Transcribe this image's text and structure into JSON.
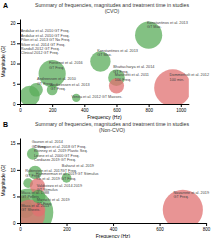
{
  "chart_data": [
    {
      "type": "bubble",
      "title": "Summary of frequencies, magnitudes and treatment time in studies\n(CVO)",
      "panel_label": "A",
      "x_label": "Frequency (Hz)",
      "y_label": "Magnitude (G)",
      "x": [
        60,
        100,
        200,
        200,
        500,
        600,
        600,
        800,
        950,
        350
      ],
      "values": [
        2.0,
        3.5,
        7.5,
        3.5,
        10.5,
        6.5,
        4.5,
        17.0,
        4.0,
        1.5
      ],
      "sizes": [
        900,
        400,
        1600,
        250,
        900,
        600,
        500,
        1600,
        3000,
        150
      ],
      "colors": [
        "#5aac5a",
        "#5aac5a",
        "#5aac5a",
        "#5aac5a",
        "#5aac5a",
        "#5aac5a",
        "#e07070",
        "#5aac5a",
        "#e07070",
        "#5aac5a"
      ],
      "annotations": [
        {
          "x": 5,
          "y": 12.0,
          "text": "Andaluz et al. 2010 GT Freq.\nAndaluz et al. 2010 GT Freq.\nPilon et al. 2013 GT No Freq.\nSilver et al. 2014 GT Freq.\nRandall-2012 GT Freq.\nClinical 2012 GT Freq."
        },
        {
          "x": 105,
          "y": 4.5,
          "text": "Andreessen et al. 2010\nGT Freq."
        },
        {
          "x": 180,
          "y": 8.5,
          "text": "Fontenot et al. 2016\nGT Freq."
        },
        {
          "x": 190,
          "y": 3.2,
          "text": "Andreessen et al. 2013\nGT Freq."
        },
        {
          "x": 480,
          "y": 11.5,
          "text": "Konstantinos et al. 2013\nGT Max."
        },
        {
          "x": 580,
          "y": 7.5,
          "text": "Bhattacharya et al. 2014\nGT Freq."
        },
        {
          "x": 590,
          "y": 5.5,
          "text": "Marchetti et al. 2011\n100 Freq."
        },
        {
          "x": 790,
          "y": 18.5,
          "text": "Konstantinos et al. 2013\nGT Max."
        },
        {
          "x": 930,
          "y": 5.5,
          "text": "Dommerholt et al. 2012\n100 min."
        },
        {
          "x": 320,
          "y": 1.2,
          "text": "Venita et al. 2012 GT Masses."
        }
      ],
      "xlim": [
        0,
        1050
      ],
      "ylim": [
        0,
        21
      ],
      "xticks": [
        0,
        200,
        400,
        600,
        800,
        1000
      ],
      "yticks": [
        0,
        5,
        10,
        15,
        20
      ],
      "grid": false
    },
    {
      "type": "bubble",
      "title": "Summary of frequencies, magnitudes and treatment time in studies\n(Non-CVO)",
      "panel_label": "B",
      "x_label": "Frequency (Hz)",
      "y_label": "Magnitude (G)",
      "x": [
        20,
        25,
        35,
        40,
        42,
        55,
        65,
        75,
        80,
        80,
        200,
        700
      ],
      "values": [
        4.0,
        2.5,
        7.5,
        2.0,
        1.5,
        13.0,
        9.5,
        7.0,
        5.0,
        2.5,
        8.5,
        2.5
      ],
      "sizes": [
        300,
        600,
        200,
        5000,
        2000,
        300,
        400,
        500,
        400,
        400,
        200,
        3500
      ],
      "colors": [
        "#e07070",
        "#5aac5a",
        "#5aac5a",
        "#5aac5a",
        "#e07070",
        "#5aac5a",
        "#5aac5a",
        "#e07070",
        "#5aac5a",
        "#e07070",
        "#5aac5a",
        "#e07070"
      ],
      "annotations": [
        {
          "x": 5,
          "y": 4.5,
          "text": "Maca et al. 1988\nGT Pellets"
        },
        {
          "x": 5,
          "y": 2.0,
          "text": "Maca et al. 2013\nGT Sheets."
        },
        {
          "x": 23,
          "y": 8.5,
          "text": "Rubinstein et al. 2017\nGT Freq."
        },
        {
          "x": 50,
          "y": 14.0,
          "text": "Gavron et al. 2014\nGT Freq."
        },
        {
          "x": 60,
          "y": 11.5,
          "text": "Champion et al. 2018 GT Freq.\nKhinney et al. 2019 Plastic Seq.\nLeone et al. 2000 GT Freq.\nCordazzo 2019 GT Freq."
        },
        {
          "x": 68,
          "y": 8.0,
          "text": "Hammerman et al. 2019 GT Stimulus\nYin et al. 2019 GT Freq."
        },
        {
          "x": 72,
          "y": 5.8,
          "text": "Valdiviezo et al. 2014 2019\nGT Stimulus"
        },
        {
          "x": 72,
          "y": 3.2,
          "text": "Mizrachi et al. 2019\nGT Freq."
        },
        {
          "x": 180,
          "y": 9.5,
          "text": "Baharut et al. 2019\nGT Freq."
        },
        {
          "x": 660,
          "y": 4.5,
          "text": "Navarrete et al. 2019\nGT Freq."
        }
      ],
      "xlim": [
        0,
        800
      ],
      "ylim": [
        0,
        16
      ],
      "xticks": [
        0,
        200,
        400,
        600,
        800
      ],
      "yticks": [
        0,
        5,
        10,
        15
      ],
      "grid": false
    }
  ]
}
